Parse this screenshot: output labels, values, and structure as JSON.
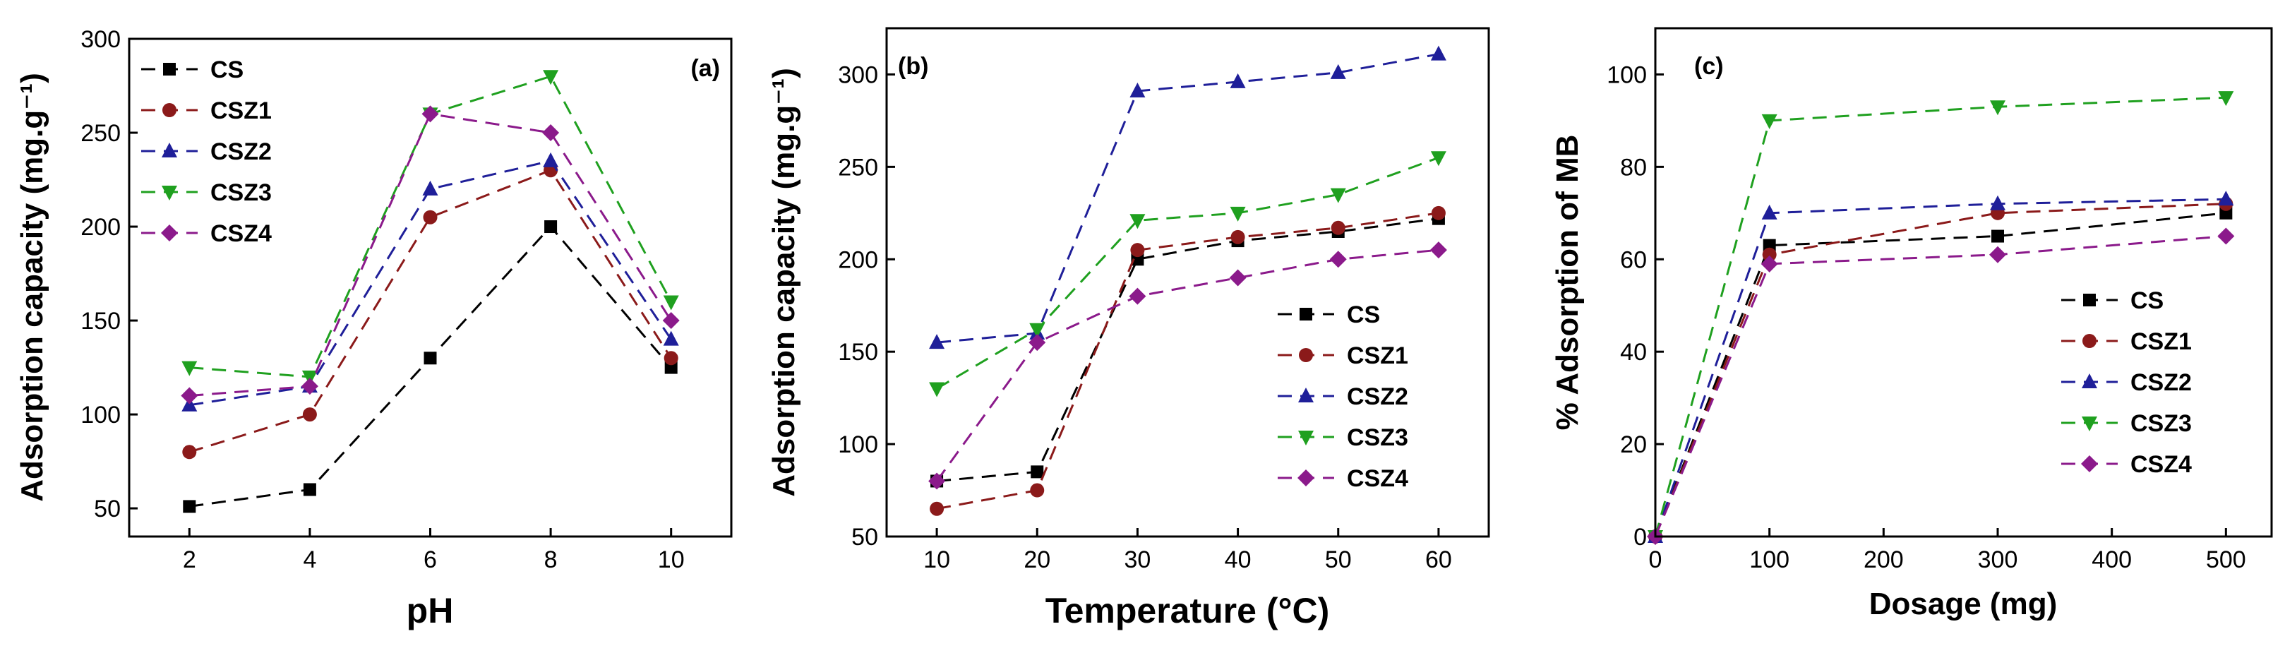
{
  "chart_data": [
    {
      "type": "line",
      "panel_label": "(a)",
      "xlabel": "pH",
      "ylabel": "Adsorption capacity (mg.g⁻¹)",
      "x": [
        2,
        4,
        6,
        8,
        10
      ],
      "xticks": [
        "2",
        "4",
        "6",
        "8",
        "10"
      ],
      "yticks": [
        "50",
        "100",
        "150",
        "200",
        "250",
        "300"
      ],
      "xlim": [
        1,
        11
      ],
      "ylim": [
        35,
        300
      ],
      "legend_position": "top-left",
      "series": [
        {
          "name": "CS",
          "color": "#000000",
          "marker": "square",
          "values": [
            51,
            60,
            130,
            200,
            125
          ]
        },
        {
          "name": "CSZ1",
          "color": "#8B1A1A",
          "marker": "circle",
          "values": [
            80,
            100,
            205,
            230,
            130
          ]
        },
        {
          "name": "CSZ2",
          "color": "#1F1F99",
          "marker": "triangle-up",
          "values": [
            105,
            115,
            220,
            235,
            140
          ]
        },
        {
          "name": "CSZ3",
          "color": "#1FA01F",
          "marker": "triangle-down",
          "values": [
            125,
            120,
            260,
            280,
            160
          ]
        },
        {
          "name": "CSZ4",
          "color": "#8B1A8B",
          "marker": "diamond",
          "values": [
            110,
            115,
            260,
            250,
            150
          ]
        }
      ]
    },
    {
      "type": "line",
      "panel_label": "(b)",
      "xlabel": "Temperature (°C)",
      "ylabel": "Adsorption capacity (mg.g⁻¹)",
      "x": [
        10,
        20,
        30,
        40,
        50,
        60
      ],
      "xticks": [
        "10",
        "20",
        "30",
        "40",
        "50",
        "60"
      ],
      "yticks": [
        "50",
        "100",
        "150",
        "200",
        "250",
        "300"
      ],
      "xlim": [
        5,
        65
      ],
      "ylim": [
        50,
        325
      ],
      "legend_position": "bottom-right",
      "series": [
        {
          "name": "CS",
          "color": "#000000",
          "marker": "square",
          "values": [
            80,
            85,
            200,
            210,
            215,
            222
          ]
        },
        {
          "name": "CSZ1",
          "color": "#8B1A1A",
          "marker": "circle",
          "values": [
            65,
            75,
            205,
            212,
            217,
            225
          ]
        },
        {
          "name": "CSZ2",
          "color": "#1F1F99",
          "marker": "triangle-up",
          "values": [
            155,
            160,
            291,
            296,
            301,
            311
          ]
        },
        {
          "name": "CSZ3",
          "color": "#1FA01F",
          "marker": "triangle-down",
          "values": [
            130,
            162,
            221,
            225,
            235,
            255
          ]
        },
        {
          "name": "CSZ4",
          "color": "#8B1A8B",
          "marker": "diamond",
          "values": [
            80,
            155,
            180,
            190,
            200,
            205
          ]
        }
      ]
    },
    {
      "type": "line",
      "panel_label": "(c)",
      "xlabel": "Dosage (mg)",
      "ylabel": "% Adsorption of MB",
      "x": [
        0,
        100,
        300,
        500
      ],
      "xticks": [
        "0",
        "100",
        "200",
        "300",
        "400",
        "500"
      ],
      "yticks": [
        "0",
        "20",
        "40",
        "60",
        "80",
        "100"
      ],
      "xlim": [
        0,
        540
      ],
      "ylim": [
        0,
        110
      ],
      "legend_position": "bottom-right",
      "series": [
        {
          "name": "CS",
          "color": "#000000",
          "marker": "square",
          "values": [
            0,
            63,
            65,
            70
          ]
        },
        {
          "name": "CSZ1",
          "color": "#8B1A1A",
          "marker": "circle",
          "values": [
            0,
            61,
            70,
            72
          ]
        },
        {
          "name": "CSZ2",
          "color": "#1F1F99",
          "marker": "triangle-up",
          "values": [
            0,
            70,
            72,
            73
          ]
        },
        {
          "name": "CSZ3",
          "color": "#1FA01F",
          "marker": "triangle-down",
          "values": [
            0,
            90,
            93,
            95
          ]
        },
        {
          "name": "CSZ4",
          "color": "#8B1A8B",
          "marker": "diamond",
          "values": [
            0,
            59,
            61,
            65
          ]
        }
      ]
    }
  ]
}
